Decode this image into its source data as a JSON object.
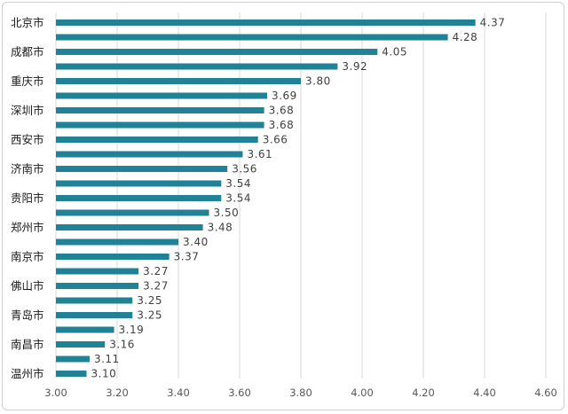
{
  "chart_data": {
    "type": "bar",
    "orientation": "horizontal",
    "categories": [
      "北京市",
      "",
      "成都市",
      "",
      "重庆市",
      "",
      "深圳市",
      "",
      "西安市",
      "",
      "济南市",
      "",
      "贵阳市",
      "",
      "郑州市",
      "",
      "南京市",
      "",
      "佛山市",
      "",
      "青岛市",
      "",
      "南昌市",
      "",
      "温州市"
    ],
    "values": [
      4.37,
      4.28,
      4.05,
      3.92,
      3.8,
      3.69,
      3.68,
      3.68,
      3.66,
      3.61,
      3.56,
      3.54,
      3.54,
      3.5,
      3.48,
      3.4,
      3.37,
      3.27,
      3.27,
      3.25,
      3.25,
      3.19,
      3.16,
      3.11,
      3.1
    ],
    "value_labels": [
      "4.37",
      "4.28",
      "4.05",
      "3.92",
      "3.80",
      "3.69",
      "3.68",
      "3.68",
      "3.66",
      "3.61",
      "3.56",
      "3.54",
      "3.54",
      "3.50",
      "3.48",
      "3.40",
      "3.37",
      "3.27",
      "3.27",
      "3.25",
      "3.25",
      "3.19",
      "3.16",
      "3.11",
      "3.10"
    ],
    "xticks": [
      "3.00",
      "3.20",
      "3.40",
      "3.60",
      "3.80",
      "4.00",
      "4.20",
      "4.40",
      "4.60"
    ],
    "xlim": [
      3.0,
      4.6
    ],
    "grid": true,
    "legend": "none",
    "bar_color": "#1f8296"
  }
}
